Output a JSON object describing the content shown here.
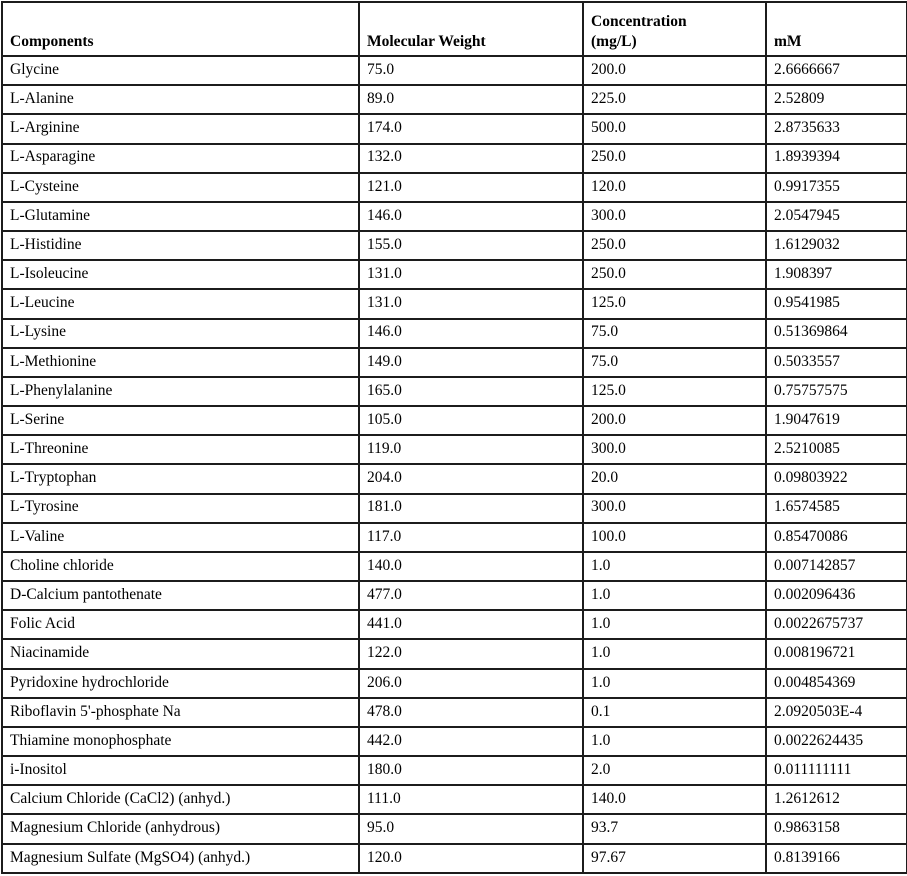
{
  "table": {
    "columns": [
      "Components",
      "Molecular Weight",
      "Concentration\n(mg/L)",
      "mM"
    ],
    "column_keys": [
      "component",
      "molecular-weight",
      "concentration-mg-l",
      "mm"
    ],
    "rows": [
      [
        "Glycine",
        "75.0",
        "200.0",
        "2.6666667"
      ],
      [
        "L-Alanine",
        "89.0",
        "225.0",
        "2.52809"
      ],
      [
        "L-Arginine",
        "174.0",
        "500.0",
        "2.8735633"
      ],
      [
        "L-Asparagine",
        "132.0",
        "250.0",
        "1.8939394"
      ],
      [
        "L-Cysteine",
        "121.0",
        "120.0",
        "0.9917355"
      ],
      [
        "L-Glutamine",
        "146.0",
        "300.0",
        "2.0547945"
      ],
      [
        "L-Histidine",
        "155.0",
        "250.0",
        "1.6129032"
      ],
      [
        "L-Isoleucine",
        "131.0",
        "250.0",
        "1.908397"
      ],
      [
        "L-Leucine",
        "131.0",
        "125.0",
        "0.9541985"
      ],
      [
        "L-Lysine",
        "146.0",
        "75.0",
        "0.51369864"
      ],
      [
        "L-Methionine",
        "149.0",
        "75.0",
        "0.5033557"
      ],
      [
        "L-Phenylalanine",
        "165.0",
        "125.0",
        "0.75757575"
      ],
      [
        "L-Serine",
        "105.0",
        "200.0",
        "1.9047619"
      ],
      [
        "L-Threonine",
        "119.0",
        "300.0",
        "2.5210085"
      ],
      [
        "L-Tryptophan",
        "204.0",
        "20.0",
        "0.09803922"
      ],
      [
        "L-Tyrosine",
        "181.0",
        "300.0",
        "1.6574585"
      ],
      [
        "L-Valine",
        "117.0",
        "100.0",
        "0.85470086"
      ],
      [
        "Choline chloride",
        "140.0",
        "1.0",
        "0.007142857"
      ],
      [
        "D-Calcium pantothenate",
        "477.0",
        "1.0",
        "0.002096436"
      ],
      [
        "Folic Acid",
        "441.0",
        "1.0",
        "0.0022675737"
      ],
      [
        "Niacinamide",
        "122.0",
        "1.0",
        "0.008196721"
      ],
      [
        "Pyridoxine hydrochloride",
        "206.0",
        "1.0",
        "0.004854369"
      ],
      [
        "Riboflavin 5'-phosphate Na",
        "478.0",
        "0.1",
        "2.0920503E-4"
      ],
      [
        "Thiamine monophosphate",
        "442.0",
        "1.0",
        "0.0022624435"
      ],
      [
        "i-Inositol",
        "180.0",
        "2.0",
        "0.011111111"
      ],
      [
        "Calcium Chloride (CaCl2) (anhyd.)",
        "111.0",
        "140.0",
        "1.2612612"
      ],
      [
        "Magnesium Chloride (anhydrous)",
        "95.0",
        "93.7",
        "0.9863158"
      ],
      [
        "Magnesium Sulfate (MgSO4) (anhyd.)",
        "120.0",
        "97.67",
        "0.8139166"
      ]
    ]
  }
}
